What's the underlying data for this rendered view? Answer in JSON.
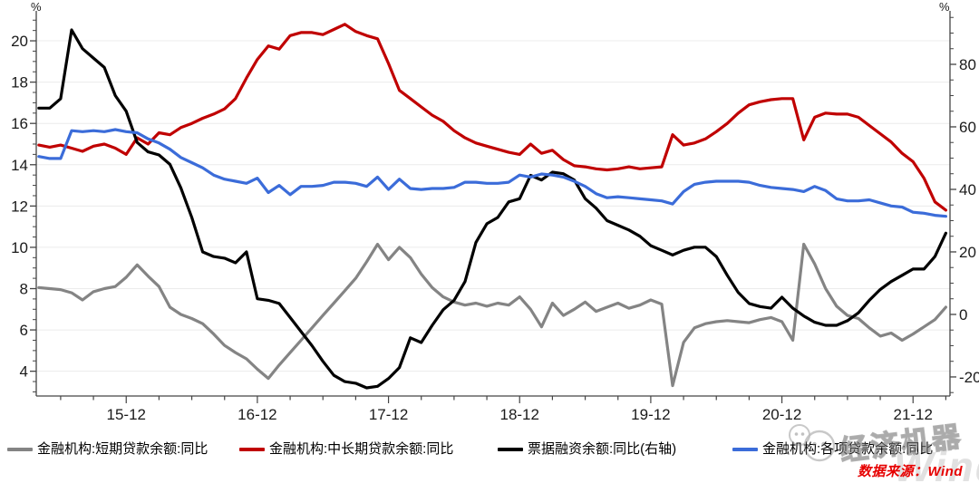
{
  "chart": {
    "left_axis": {
      "unit": "%",
      "min": 2.8,
      "max": 21.45,
      "major_ticks": [
        4,
        6,
        8,
        10,
        12,
        14,
        16,
        18,
        20
      ],
      "minor_step": 0.5,
      "minor_from": 3,
      "minor_to": 21
    },
    "right_axis": {
      "unit": "%",
      "min": -26.1,
      "max": 97.1,
      "major_ticks": [
        -20,
        0,
        20,
        40,
        60,
        80
      ],
      "minor_step": 5,
      "minor_from": -25,
      "minor_to": 95
    },
    "x_axis": {
      "major_labels": [
        "15-12",
        "16-12",
        "17-12",
        "18-12",
        "19-12",
        "20-12",
        "21-12"
      ],
      "major_indices": [
        8,
        20,
        32,
        44,
        56,
        68,
        80
      ],
      "minor_offset": 2,
      "minor_every": 3
    },
    "grid_color": "#ececec",
    "axis_color": "#444444",
    "label_color": "#1a1a1a"
  },
  "chart_data": {
    "type": "line",
    "x": [
      "15-04",
      "15-05",
      "15-06",
      "15-07",
      "15-08",
      "15-09",
      "15-10",
      "15-11",
      "15-12",
      "16-01",
      "16-02",
      "16-03",
      "16-04",
      "16-05",
      "16-06",
      "16-07",
      "16-08",
      "16-09",
      "16-10",
      "16-11",
      "16-12",
      "17-01",
      "17-02",
      "17-03",
      "17-04",
      "17-05",
      "17-06",
      "17-07",
      "17-08",
      "17-09",
      "17-10",
      "17-11",
      "17-12",
      "18-01",
      "18-02",
      "18-03",
      "18-04",
      "18-05",
      "18-06",
      "18-07",
      "18-08",
      "18-09",
      "18-10",
      "18-11",
      "18-12",
      "19-01",
      "19-02",
      "19-03",
      "19-04",
      "19-05",
      "19-06",
      "19-07",
      "19-08",
      "19-09",
      "19-10",
      "19-11",
      "19-12",
      "20-01",
      "20-02",
      "20-03",
      "20-04",
      "20-05",
      "20-06",
      "20-07",
      "20-08",
      "20-09",
      "20-10",
      "20-11",
      "20-12",
      "21-01",
      "21-02",
      "21-03",
      "21-04",
      "21-05",
      "21-06",
      "21-07",
      "21-08",
      "21-09",
      "21-10",
      "21-11",
      "21-12",
      "22-01",
      "22-02",
      "22-03"
    ],
    "series": [
      {
        "name": "金融机构:短期贷款余额:同比",
        "axis": "left",
        "color": "#848484",
        "values": [
          8.05,
          8.0,
          7.95,
          7.8,
          7.45,
          7.85,
          8.0,
          8.1,
          8.55,
          9.15,
          8.6,
          8.1,
          7.1,
          6.75,
          6.55,
          6.3,
          5.8,
          5.25,
          4.9,
          4.6,
          4.1,
          3.65,
          4.3,
          4.9,
          5.5,
          6.1,
          6.7,
          7.3,
          7.9,
          8.5,
          9.3,
          10.15,
          9.4,
          10.0,
          9.5,
          8.7,
          8.05,
          7.6,
          7.35,
          7.2,
          7.3,
          7.15,
          7.3,
          7.2,
          7.6,
          7.0,
          6.15,
          7.3,
          6.7,
          7.0,
          7.35,
          6.9,
          7.1,
          7.3,
          7.05,
          7.2,
          7.45,
          7.25,
          3.3,
          5.4,
          6.1,
          6.3,
          6.4,
          6.45,
          6.4,
          6.35,
          6.5,
          6.6,
          6.4,
          5.5,
          10.15,
          9.2,
          8.0,
          7.15,
          6.7,
          6.55,
          6.1,
          5.7,
          5.85,
          5.5,
          5.8,
          6.15,
          6.5,
          7.1
        ]
      },
      {
        "name": "金融机构:中长期贷款余额:同比",
        "axis": "left",
        "color": "#c00000",
        "values": [
          14.95,
          14.85,
          14.95,
          14.8,
          14.65,
          14.9,
          15.0,
          14.8,
          14.5,
          15.3,
          15.0,
          15.55,
          15.45,
          15.8,
          16.0,
          16.25,
          16.45,
          16.7,
          17.2,
          18.2,
          19.1,
          19.75,
          19.6,
          20.25,
          20.4,
          20.4,
          20.3,
          20.55,
          20.8,
          20.45,
          20.25,
          20.1,
          18.9,
          17.6,
          17.2,
          16.8,
          16.4,
          16.1,
          15.65,
          15.3,
          15.05,
          14.9,
          14.75,
          14.6,
          14.5,
          15.0,
          14.55,
          14.7,
          14.25,
          13.95,
          13.9,
          13.8,
          13.75,
          13.8,
          13.9,
          13.8,
          13.85,
          13.9,
          15.45,
          14.95,
          15.05,
          15.25,
          15.6,
          16.0,
          16.5,
          16.9,
          17.05,
          17.15,
          17.2,
          17.2,
          15.2,
          16.3,
          16.5,
          16.45,
          16.45,
          16.3,
          15.9,
          15.5,
          15.1,
          14.55,
          14.15,
          13.35,
          12.2,
          11.8
        ]
      },
      {
        "name": "票据融资余额:同比(右轴)",
        "axis": "right",
        "color": "#000000",
        "values": [
          66,
          66,
          69,
          91,
          85,
          82,
          79,
          70,
          65,
          55,
          52,
          51,
          48,
          40.5,
          31,
          20,
          18.5,
          18,
          16.5,
          20,
          5,
          4.5,
          3.5,
          -1,
          -5.5,
          -10,
          -15,
          -19.5,
          -21.5,
          -22,
          -23.5,
          -23,
          -20.5,
          -17,
          -7.5,
          -9,
          -3.5,
          1.5,
          4.5,
          10.5,
          23,
          29,
          31,
          36,
          37,
          44.5,
          43,
          45.5,
          45,
          43,
          37,
          34,
          30,
          28.5,
          27,
          25,
          22,
          20.5,
          19,
          20.5,
          21.5,
          21.5,
          18.5,
          12.5,
          7,
          3.5,
          2.5,
          2,
          5.5,
          2,
          -0.5,
          -2.5,
          -3.5,
          -3.5,
          -2,
          0.5,
          4.5,
          8,
          10.5,
          12.5,
          14.5,
          14.5,
          18.5,
          26
        ]
      },
      {
        "name": "金融机构:各项贷款余额:同比",
        "axis": "left",
        "color": "#3b6cd9",
        "values": [
          14.4,
          14.3,
          14.3,
          15.65,
          15.6,
          15.65,
          15.6,
          15.7,
          15.6,
          15.55,
          15.25,
          15.05,
          14.75,
          14.35,
          14.1,
          13.85,
          13.5,
          13.3,
          13.2,
          13.1,
          13.35,
          12.65,
          13.0,
          12.55,
          12.95,
          12.95,
          13.0,
          13.15,
          13.15,
          13.1,
          12.95,
          13.4,
          12.8,
          13.3,
          12.85,
          12.8,
          12.85,
          12.85,
          12.9,
          13.15,
          13.15,
          13.1,
          13.1,
          13.15,
          13.5,
          13.4,
          13.55,
          13.5,
          13.4,
          13.2,
          12.95,
          12.6,
          12.4,
          12.45,
          12.4,
          12.35,
          12.3,
          12.25,
          12.1,
          12.7,
          13.05,
          13.15,
          13.2,
          13.2,
          13.2,
          13.15,
          13.0,
          12.9,
          12.85,
          12.8,
          12.7,
          12.95,
          12.75,
          12.35,
          12.25,
          12.25,
          12.3,
          12.15,
          12.0,
          11.95,
          11.7,
          11.65,
          11.55,
          11.5
        ]
      }
    ]
  },
  "legend": {
    "items": [
      {
        "label": "金融机构:短期贷款余额:同比",
        "color": "#848484"
      },
      {
        "label": "金融机构:中长期贷款余额:同比",
        "color": "#c00000"
      },
      {
        "label": "票据融资余额:同比(右轴)",
        "color": "#000000"
      },
      {
        "label": "金融机构:各项贷款余额:同比",
        "color": "#3b6cd9"
      }
    ]
  },
  "source_note": "数据来源：Wind",
  "watermark": {
    "text": "经济机器",
    "sub": "Wind"
  }
}
